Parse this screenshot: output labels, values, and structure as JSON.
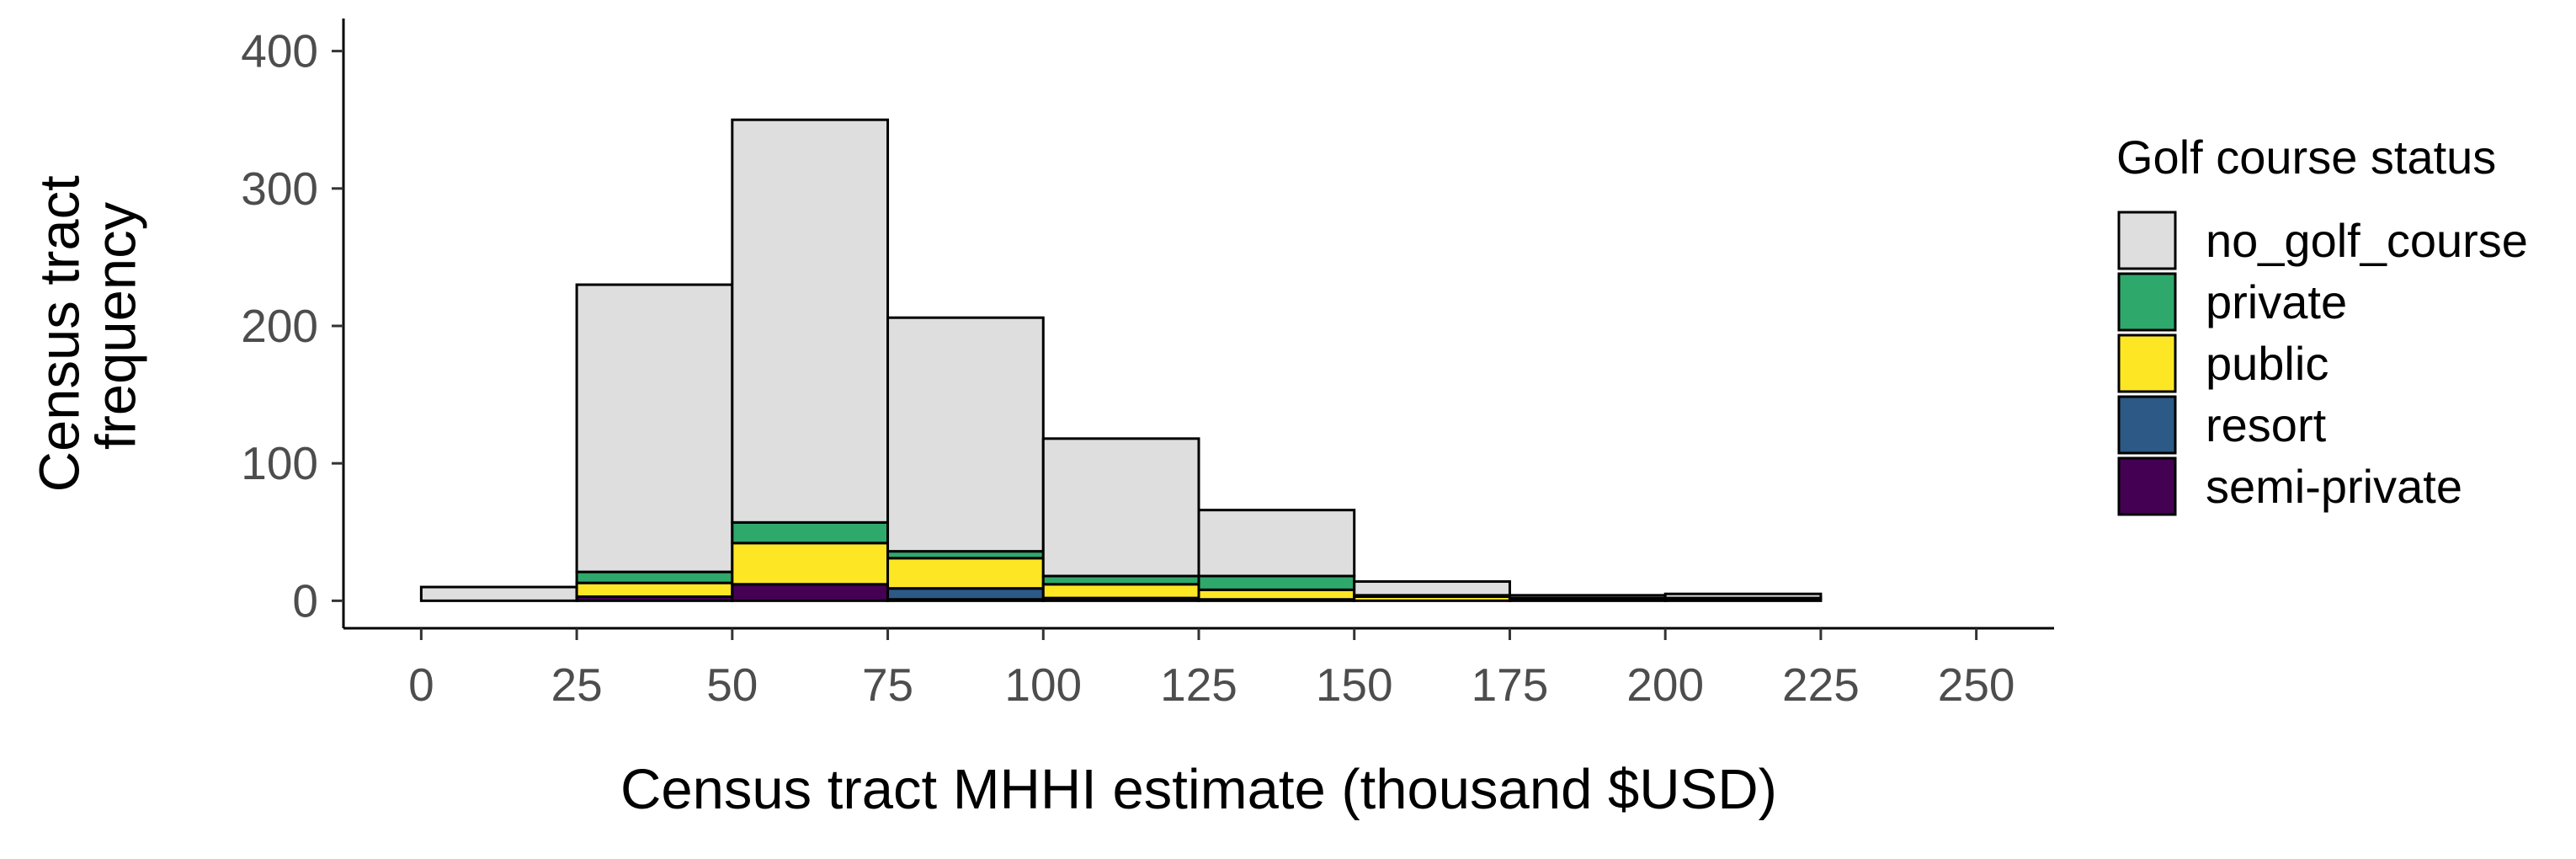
{
  "chart_data": {
    "type": "bar",
    "stacked": true,
    "bin_edges": [
      0,
      25,
      50,
      75,
      100,
      125,
      150,
      175,
      200,
      225
    ],
    "xticks": [
      0,
      25,
      50,
      75,
      100,
      125,
      150,
      175,
      200,
      225,
      250
    ],
    "yticks": [
      0,
      100,
      200,
      300,
      400
    ],
    "xlim": [
      -12.5,
      262.5
    ],
    "ylim": [
      -20,
      420
    ],
    "xlabel": "Census tract MHHI estimate (thousand $USD)",
    "ylabel": [
      "Census tract",
      "frequency"
    ],
    "legend": {
      "title": "Golf course status",
      "position": "right"
    },
    "grid": false,
    "series": [
      {
        "name": "semi-private",
        "color": "#440154",
        "values": [
          0,
          3,
          12,
          1,
          2,
          1,
          0,
          1,
          1
        ]
      },
      {
        "name": "resort",
        "color": "#2C5985",
        "values": [
          0,
          0,
          0,
          8,
          0,
          0,
          0,
          0,
          0
        ]
      },
      {
        "name": "public",
        "color": "#FDE725",
        "values": [
          0,
          10,
          30,
          22,
          10,
          7,
          3,
          1,
          1
        ]
      },
      {
        "name": "private",
        "color": "#2FA86C",
        "values": [
          0,
          8,
          15,
          5,
          6,
          10,
          1,
          0,
          0
        ]
      },
      {
        "name": "no_golf_course",
        "color": "#DEDEDE",
        "values": [
          10,
          209,
          293,
          170,
          100,
          48,
          10,
          2,
          3
        ]
      }
    ],
    "legend_order": [
      "no_golf_course",
      "private",
      "public",
      "resort",
      "semi-private"
    ]
  }
}
